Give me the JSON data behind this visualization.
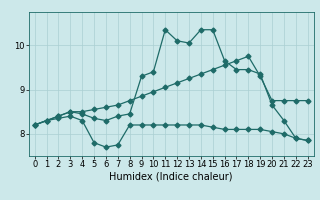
{
  "xlabel": "Humidex (Indice chaleur)",
  "ylabel": "",
  "bg_color": "#cce8ea",
  "line_color": "#1e6b68",
  "grid_color": "#aacfd2",
  "xlim": [
    -0.5,
    23.5
  ],
  "ylim": [
    7.5,
    10.75
  ],
  "yticks": [
    8,
    9,
    10
  ],
  "xticks": [
    0,
    1,
    2,
    3,
    4,
    5,
    6,
    7,
    8,
    9,
    10,
    11,
    12,
    13,
    14,
    15,
    16,
    17,
    18,
    19,
    20,
    21,
    22,
    23
  ],
  "line1_x": [
    0,
    1,
    2,
    3,
    4,
    5,
    6,
    7,
    8,
    9,
    10,
    11,
    12,
    13,
    14,
    15,
    16,
    17,
    18,
    19,
    20,
    21,
    22,
    23
  ],
  "line1_y": [
    8.2,
    8.3,
    8.4,
    8.5,
    8.5,
    8.55,
    8.6,
    8.65,
    8.75,
    8.85,
    8.95,
    9.05,
    9.15,
    9.25,
    9.35,
    9.45,
    9.55,
    9.65,
    9.75,
    9.3,
    8.75,
    8.75,
    8.75,
    8.75
  ],
  "line2_x": [
    0,
    1,
    2,
    3,
    4,
    5,
    6,
    7,
    8,
    9,
    10,
    11,
    12,
    13,
    14,
    15,
    16,
    17,
    18,
    19,
    20,
    21,
    22,
    23
  ],
  "line2_y": [
    8.2,
    8.3,
    8.4,
    8.5,
    8.45,
    8.35,
    8.3,
    8.4,
    8.45,
    9.3,
    9.4,
    10.35,
    10.1,
    10.05,
    10.35,
    10.35,
    9.65,
    9.45,
    9.45,
    9.35,
    8.65,
    8.3,
    7.9,
    7.85
  ],
  "line3_x": [
    0,
    1,
    2,
    3,
    4,
    5,
    6,
    7,
    8,
    9,
    10,
    11,
    12,
    13,
    14,
    15,
    16,
    17,
    18,
    19,
    20,
    21,
    22,
    23
  ],
  "line3_y": [
    8.2,
    8.3,
    8.35,
    8.4,
    8.3,
    7.8,
    7.7,
    7.75,
    8.2,
    8.2,
    8.2,
    8.2,
    8.2,
    8.2,
    8.2,
    8.15,
    8.1,
    8.1,
    8.1,
    8.1,
    8.05,
    8.0,
    7.9,
    7.85
  ],
  "marker": "D",
  "markersize": 2.5,
  "linewidth": 0.9,
  "tick_fontsize": 6,
  "xlabel_fontsize": 7
}
